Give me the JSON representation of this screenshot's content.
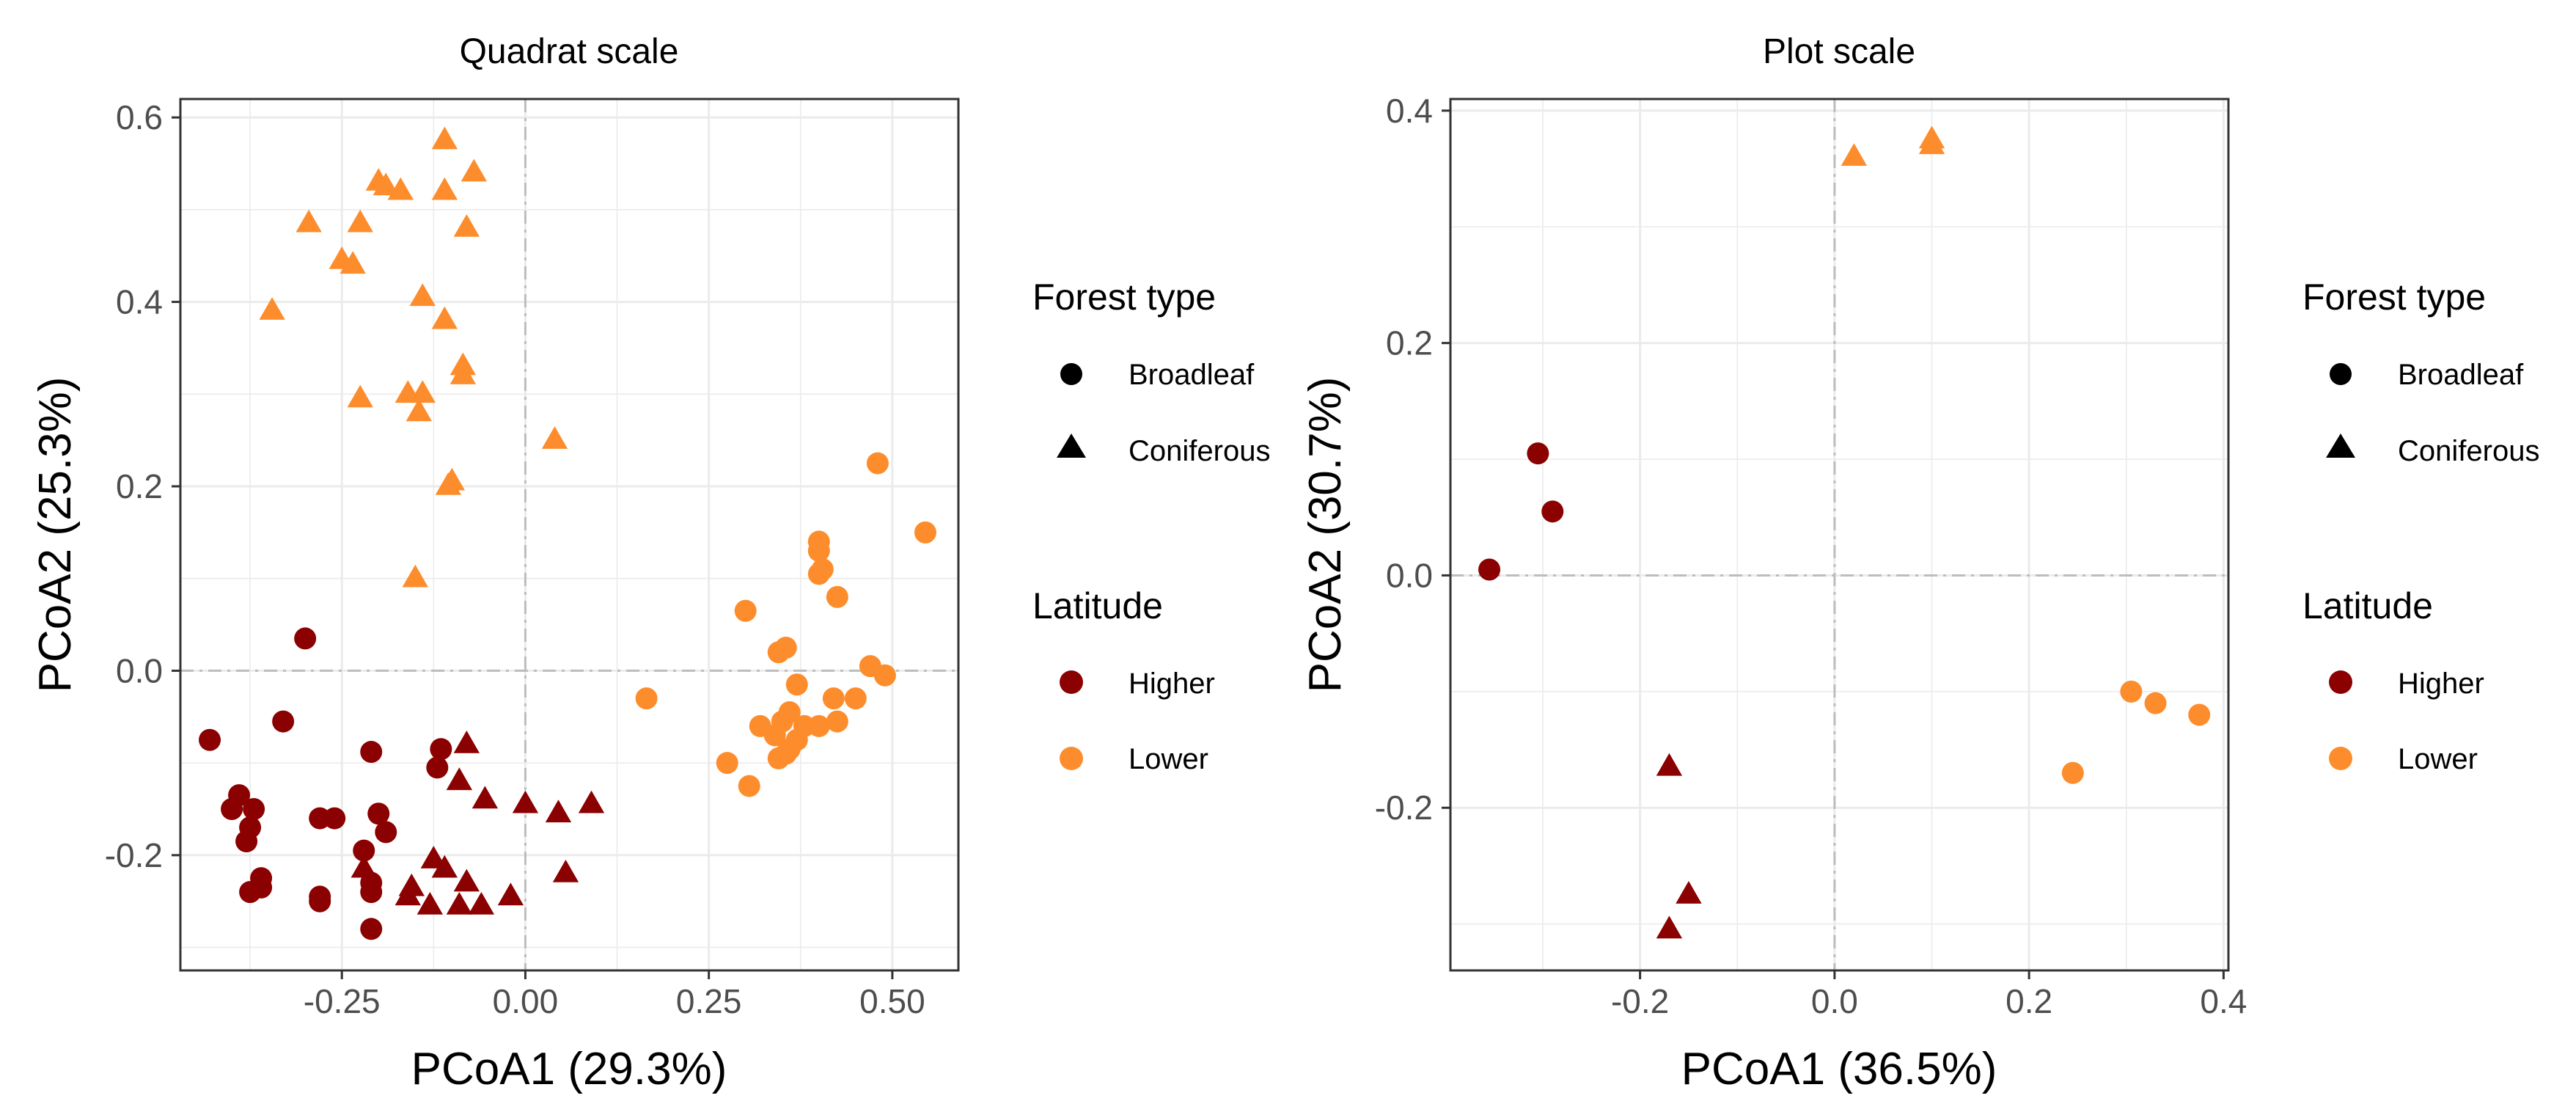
{
  "chart_data": [
    {
      "type": "scatter",
      "title": "Quadrat scale",
      "xlabel": "PCoA1 (29.3%)",
      "ylabel": "PCoA2 (25.3%)",
      "xlim": [
        -0.47,
        0.59
      ],
      "ylim": [
        -0.325,
        0.62
      ],
      "xticks": [
        -0.25,
        0.0,
        0.25,
        0.5
      ],
      "xtick_labels": [
        "-0.25",
        "0.00",
        "0.25",
        "0.50"
      ],
      "yticks": [
        -0.2,
        0.0,
        0.2,
        0.4,
        0.6
      ],
      "ytick_labels": [
        "-0.2",
        "0.0",
        "0.2",
        "0.4",
        "0.6"
      ],
      "grid": true,
      "reference_lines": {
        "x": 0,
        "y": 0,
        "style": "dashdot"
      },
      "series": [
        {
          "name": "Lower Coniferous",
          "latitude": "Lower",
          "forest_type": "Coniferous",
          "points": [
            [
              -0.11,
              0.575
            ],
            [
              -0.2,
              0.53
            ],
            [
              -0.19,
              0.525
            ],
            [
              -0.17,
              0.52
            ],
            [
              -0.07,
              0.54
            ],
            [
              -0.11,
              0.52
            ],
            [
              -0.295,
              0.485
            ],
            [
              -0.225,
              0.485
            ],
            [
              -0.08,
              0.48
            ],
            [
              -0.25,
              0.445
            ],
            [
              -0.235,
              0.44
            ],
            [
              -0.345,
              0.39
            ],
            [
              -0.14,
              0.405
            ],
            [
              -0.11,
              0.38
            ],
            [
              -0.085,
              0.33
            ],
            [
              -0.085,
              0.32
            ],
            [
              -0.225,
              0.295
            ],
            [
              -0.16,
              0.3
            ],
            [
              -0.14,
              0.3
            ],
            [
              -0.145,
              0.28
            ],
            [
              0.04,
              0.25
            ],
            [
              -0.1,
              0.205
            ],
            [
              -0.105,
              0.2
            ],
            [
              -0.15,
              0.1
            ]
          ]
        },
        {
          "name": "Lower Broadleaf",
          "latitude": "Lower",
          "forest_type": "Broadleaf",
          "points": [
            [
              0.48,
              0.225
            ],
            [
              0.545,
              0.15
            ],
            [
              0.4,
              0.14
            ],
            [
              0.4,
              0.13
            ],
            [
              0.405,
              0.11
            ],
            [
              0.4,
              0.105
            ],
            [
              0.425,
              0.08
            ],
            [
              0.3,
              0.065
            ],
            [
              0.355,
              0.025
            ],
            [
              0.345,
              0.02
            ],
            [
              0.47,
              0.005
            ],
            [
              0.49,
              -0.005
            ],
            [
              0.37,
              -0.015
            ],
            [
              0.45,
              -0.03
            ],
            [
              0.42,
              -0.03
            ],
            [
              0.165,
              -0.03
            ],
            [
              0.36,
              -0.045
            ],
            [
              0.32,
              -0.06
            ],
            [
              0.35,
              -0.055
            ],
            [
              0.38,
              -0.06
            ],
            [
              0.4,
              -0.06
            ],
            [
              0.425,
              -0.055
            ],
            [
              0.34,
              -0.07
            ],
            [
              0.37,
              -0.075
            ],
            [
              0.36,
              -0.085
            ],
            [
              0.355,
              -0.09
            ],
            [
              0.275,
              -0.1
            ],
            [
              0.345,
              -0.095
            ],
            [
              0.305,
              -0.125
            ]
          ]
        },
        {
          "name": "Higher Broadleaf",
          "latitude": "Higher",
          "forest_type": "Broadleaf",
          "points": [
            [
              -0.3,
              0.035
            ],
            [
              -0.33,
              -0.055
            ],
            [
              -0.43,
              -0.075
            ],
            [
              -0.21,
              -0.088
            ],
            [
              -0.115,
              -0.085
            ],
            [
              -0.12,
              -0.105
            ],
            [
              -0.39,
              -0.135
            ],
            [
              -0.4,
              -0.15
            ],
            [
              -0.37,
              -0.15
            ],
            [
              -0.28,
              -0.16
            ],
            [
              -0.26,
              -0.16
            ],
            [
              -0.2,
              -0.155
            ],
            [
              -0.375,
              -0.17
            ],
            [
              -0.19,
              -0.175
            ],
            [
              -0.38,
              -0.185
            ],
            [
              -0.22,
              -0.195
            ],
            [
              -0.36,
              -0.225
            ],
            [
              -0.36,
              -0.235
            ],
            [
              -0.21,
              -0.23
            ],
            [
              -0.21,
              -0.24
            ],
            [
              -0.375,
              -0.24
            ],
            [
              -0.28,
              -0.245
            ],
            [
              -0.28,
              -0.25
            ],
            [
              -0.21,
              -0.28
            ]
          ]
        },
        {
          "name": "Higher Coniferous",
          "latitude": "Higher",
          "forest_type": "Coniferous",
          "points": [
            [
              -0.08,
              -0.08
            ],
            [
              -0.09,
              -0.12
            ],
            [
              -0.055,
              -0.14
            ],
            [
              0.0,
              -0.145
            ],
            [
              0.045,
              -0.155
            ],
            [
              0.09,
              -0.145
            ],
            [
              -0.22,
              -0.215
            ],
            [
              -0.125,
              -0.205
            ],
            [
              -0.11,
              -0.215
            ],
            [
              -0.08,
              -0.23
            ],
            [
              0.055,
              -0.22
            ],
            [
              -0.155,
              -0.235
            ],
            [
              -0.16,
              -0.245
            ],
            [
              -0.13,
              -0.255
            ],
            [
              -0.09,
              -0.255
            ],
            [
              -0.06,
              -0.255
            ],
            [
              -0.02,
              -0.245
            ]
          ]
        }
      ]
    },
    {
      "type": "scatter",
      "title": "Plot scale",
      "xlabel": "PCoA1 (36.5%)",
      "ylabel": "PCoA2 (30.7%)",
      "xlim": [
        -0.395,
        0.405
      ],
      "ylim": [
        -0.34,
        0.41
      ],
      "xticks": [
        -0.2,
        0.0,
        0.2,
        0.4
      ],
      "xtick_labels": [
        "-0.2",
        "0.0",
        "0.2",
        "0.4"
      ],
      "yticks": [
        -0.2,
        0.0,
        0.2,
        0.4
      ],
      "ytick_labels": [
        "-0.2",
        "0.0",
        "0.2",
        "0.4"
      ],
      "grid": true,
      "reference_lines": {
        "x": 0,
        "y": 0,
        "style": "dashdot"
      },
      "series": [
        {
          "name": "Lower Coniferous",
          "latitude": "Lower",
          "forest_type": "Coniferous",
          "points": [
            [
              0.02,
              0.36
            ],
            [
              0.1,
              0.375
            ],
            [
              0.1,
              0.37
            ]
          ]
        },
        {
          "name": "Lower Broadleaf",
          "latitude": "Lower",
          "forest_type": "Broadleaf",
          "points": [
            [
              0.305,
              -0.1
            ],
            [
              0.33,
              -0.11
            ],
            [
              0.375,
              -0.12
            ],
            [
              0.245,
              -0.17
            ]
          ]
        },
        {
          "name": "Higher Broadleaf",
          "latitude": "Higher",
          "forest_type": "Broadleaf",
          "points": [
            [
              -0.305,
              0.105
            ],
            [
              -0.29,
              0.055
            ],
            [
              -0.355,
              0.005
            ]
          ]
        },
        {
          "name": "Higher Coniferous",
          "latitude": "Higher",
          "forest_type": "Coniferous",
          "points": [
            [
              -0.17,
              -0.165
            ],
            [
              -0.15,
              -0.275
            ],
            [
              -0.17,
              -0.305
            ]
          ]
        }
      ]
    }
  ],
  "legend": {
    "forest_type_title": "Forest type",
    "forest_type_items": [
      "Broadleaf",
      "Coniferous"
    ],
    "latitude_title": "Latitude",
    "latitude_items": [
      "Higher",
      "Lower"
    ]
  },
  "colors": {
    "Higher": "#8b0000",
    "Lower": "#fd8d2c",
    "legend_shape": "#000000",
    "grid": "#ebebeb",
    "reference_line": "#bdbdbd",
    "panel_border": "#333333"
  }
}
